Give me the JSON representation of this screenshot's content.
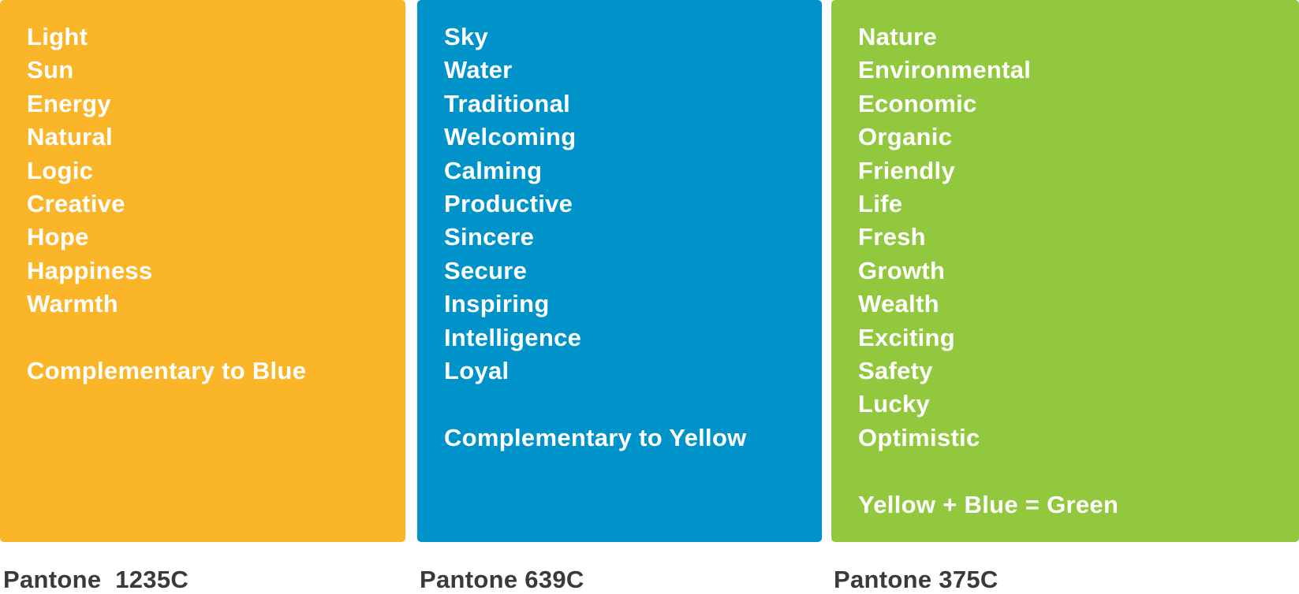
{
  "panels": [
    {
      "color": "#fbb529",
      "words": [
        "Light",
        "Sun",
        "Energy",
        "Natural",
        "Logic",
        "Creative",
        "Hope",
        "Happiness",
        "Warmth"
      ],
      "note": "Complementary to Blue",
      "label": "Pantone  1235C"
    },
    {
      "color": "#0093c9",
      "words": [
        "Sky",
        "Water",
        "Traditional",
        "Welcoming",
        "Calming",
        "Productive",
        "Sincere",
        "Secure",
        "Inspiring",
        "Intelligence",
        "Loyal"
      ],
      "note": "Complementary to Yellow",
      "label": "Pantone 639C"
    },
    {
      "color": "#92c83e",
      "words": [
        "Nature",
        "Environmental",
        "Economic",
        "Organic",
        "Friendly",
        "Life",
        "Fresh",
        "Growth",
        "Wealth",
        "Exciting",
        "Safety",
        "Lucky",
        "Optimistic"
      ],
      "note": "Yellow + Blue = Green",
      "label": "Pantone 375C"
    }
  ]
}
